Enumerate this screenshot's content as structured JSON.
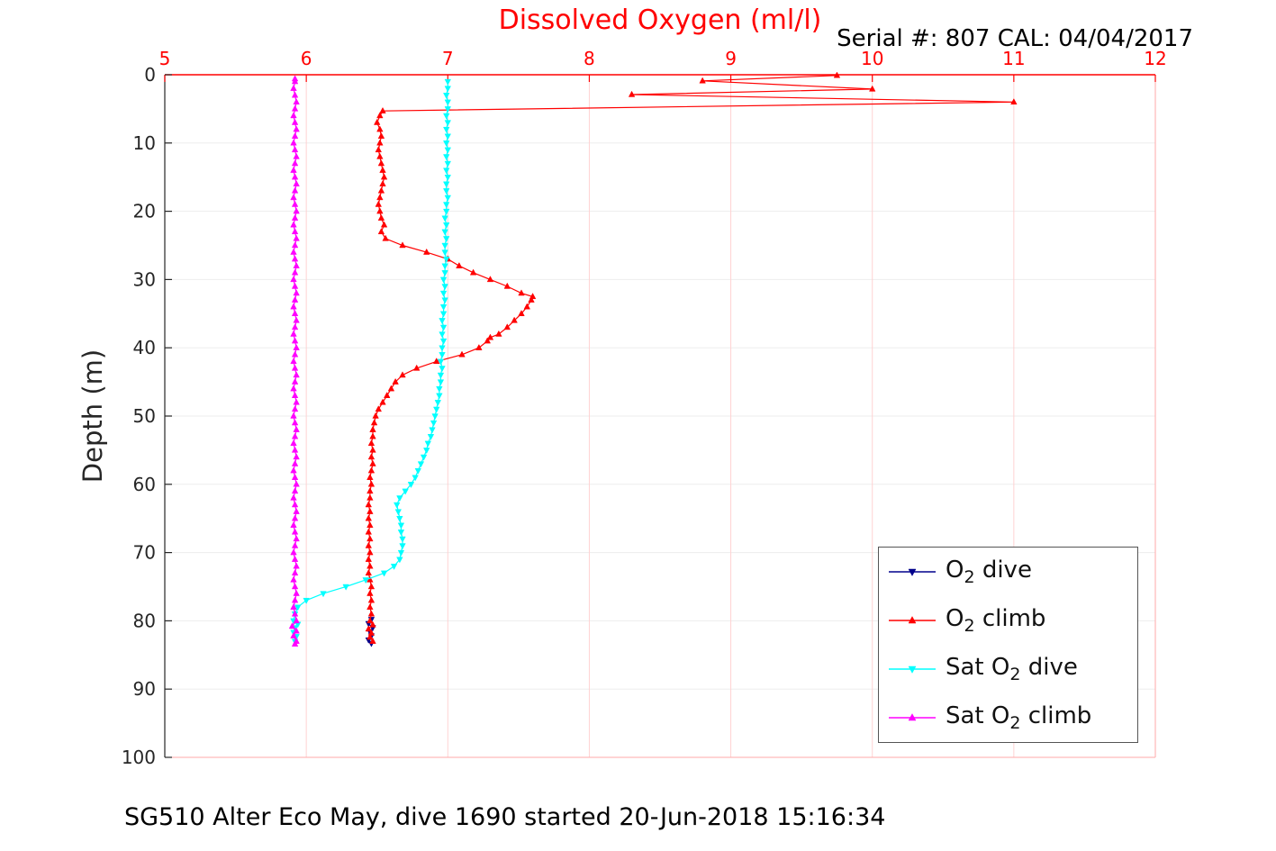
{
  "annotation": "Serial #: 807  CAL: 04/04/2017",
  "caption": "SG510 Alter Eco May, dive 1690 started 20-Jun-2018 15:16:34",
  "chart_data": {
    "type": "line",
    "title": "Dissolved Oxygen (ml/l)",
    "xlabel": "Dissolved Oxygen (ml/l)",
    "ylabel": "Depth (m)",
    "xlim": [
      5,
      12
    ],
    "ylim": [
      0,
      100
    ],
    "y_inverted": true,
    "x_axis_location": "top",
    "grid": true,
    "legend_position": "bottom-right",
    "xticks": [
      5,
      6,
      7,
      8,
      9,
      10,
      11,
      12
    ],
    "yticks": [
      0,
      10,
      20,
      30,
      40,
      50,
      60,
      70,
      80,
      90,
      100
    ],
    "style": {
      "x_axis_color": "#ff0000",
      "y_axis_color": "#262626",
      "x_grid_color": "#ffd2d2",
      "y_grid_color": "#ededed",
      "box_secondary_color": "#ffaaaa",
      "tick_label_size": 20
    },
    "series": [
      {
        "name": "O2 dive",
        "label_pre": "O",
        "label_sub": "2",
        "label_post": " dive",
        "color": "#00008b",
        "marker": "triangle-down",
        "points": [
          [
            6.46,
            79.8
          ],
          [
            6.44,
            80.4
          ],
          [
            6.47,
            81.0
          ],
          [
            6.45,
            81.6
          ],
          [
            6.46,
            82.2
          ],
          [
            6.44,
            82.8
          ],
          [
            6.46,
            83.3
          ]
        ]
      },
      {
        "name": "O2 climb",
        "label_pre": "O",
        "label_sub": "2",
        "label_post": " climb",
        "color": "#ff0000",
        "marker": "triangle-up",
        "points": [
          [
            9.75,
            0.1
          ],
          [
            8.8,
            0.9
          ],
          [
            10.0,
            2.1
          ],
          [
            8.3,
            2.9
          ],
          [
            11.0,
            4.0
          ],
          [
            6.54,
            5.3
          ],
          [
            6.52,
            6
          ],
          [
            6.5,
            7
          ],
          [
            6.52,
            8
          ],
          [
            6.53,
            9
          ],
          [
            6.52,
            10
          ],
          [
            6.51,
            11
          ],
          [
            6.52,
            12
          ],
          [
            6.53,
            13
          ],
          [
            6.54,
            14
          ],
          [
            6.55,
            15
          ],
          [
            6.54,
            16
          ],
          [
            6.53,
            17
          ],
          [
            6.52,
            18
          ],
          [
            6.51,
            19
          ],
          [
            6.52,
            20
          ],
          [
            6.53,
            21
          ],
          [
            6.55,
            22
          ],
          [
            6.53,
            23
          ],
          [
            6.56,
            24
          ],
          [
            6.68,
            25
          ],
          [
            6.85,
            26
          ],
          [
            7.0,
            27
          ],
          [
            7.08,
            28
          ],
          [
            7.18,
            29
          ],
          [
            7.3,
            30
          ],
          [
            7.42,
            31
          ],
          [
            7.52,
            32
          ],
          [
            7.6,
            32.5
          ],
          [
            7.59,
            33
          ],
          [
            7.56,
            34
          ],
          [
            7.52,
            35
          ],
          [
            7.47,
            36
          ],
          [
            7.42,
            37
          ],
          [
            7.36,
            38
          ],
          [
            7.3,
            38.5
          ],
          [
            7.28,
            39
          ],
          [
            7.22,
            40
          ],
          [
            7.1,
            41
          ],
          [
            6.92,
            42
          ],
          [
            6.78,
            43
          ],
          [
            6.68,
            44
          ],
          [
            6.63,
            45
          ],
          [
            6.6,
            46
          ],
          [
            6.57,
            47
          ],
          [
            6.54,
            48
          ],
          [
            6.51,
            49
          ],
          [
            6.49,
            50
          ],
          [
            6.48,
            51
          ],
          [
            6.47,
            52
          ],
          [
            6.47,
            53
          ],
          [
            6.46,
            54
          ],
          [
            6.47,
            55
          ],
          [
            6.46,
            56
          ],
          [
            6.47,
            57
          ],
          [
            6.46,
            58
          ],
          [
            6.45,
            59
          ],
          [
            6.46,
            60
          ],
          [
            6.45,
            61
          ],
          [
            6.45,
            62
          ],
          [
            6.44,
            63
          ],
          [
            6.45,
            64
          ],
          [
            6.44,
            65
          ],
          [
            6.45,
            66
          ],
          [
            6.44,
            67
          ],
          [
            6.45,
            68
          ],
          [
            6.44,
            69
          ],
          [
            6.45,
            70
          ],
          [
            6.44,
            71
          ],
          [
            6.45,
            72
          ],
          [
            6.44,
            73
          ],
          [
            6.45,
            74
          ],
          [
            6.46,
            75
          ],
          [
            6.45,
            76
          ],
          [
            6.46,
            77
          ],
          [
            6.45,
            78
          ],
          [
            6.46,
            79
          ],
          [
            6.45,
            80
          ],
          [
            6.47,
            80.6
          ],
          [
            6.44,
            81.2
          ],
          [
            6.46,
            81.8
          ],
          [
            6.45,
            82.4
          ],
          [
            6.47,
            83
          ]
        ]
      },
      {
        "name": "Sat O2 dive",
        "label_pre": "Sat O",
        "label_sub": "2",
        "label_post": " dive",
        "color": "#00ffff",
        "marker": "triangle-down",
        "points": [
          [
            7.0,
            1
          ],
          [
            7.0,
            2
          ],
          [
            6.99,
            3
          ],
          [
            7.0,
            4
          ],
          [
            7.0,
            5
          ],
          [
            6.99,
            6
          ],
          [
            7.0,
            7
          ],
          [
            6.99,
            8
          ],
          [
            7.0,
            9
          ],
          [
            6.99,
            10
          ],
          [
            7.0,
            11
          ],
          [
            6.99,
            12
          ],
          [
            7.0,
            13
          ],
          [
            6.99,
            14
          ],
          [
            7.0,
            15
          ],
          [
            6.99,
            16
          ],
          [
            6.99,
            17
          ],
          [
            7.0,
            18
          ],
          [
            6.99,
            19
          ],
          [
            6.99,
            20
          ],
          [
            6.98,
            21
          ],
          [
            6.99,
            22
          ],
          [
            6.98,
            23
          ],
          [
            6.99,
            24
          ],
          [
            6.98,
            25
          ],
          [
            6.98,
            26
          ],
          [
            6.99,
            27
          ],
          [
            6.98,
            28
          ],
          [
            6.98,
            29
          ],
          [
            6.97,
            30
          ],
          [
            6.98,
            31
          ],
          [
            6.97,
            32
          ],
          [
            6.98,
            33
          ],
          [
            6.97,
            34
          ],
          [
            6.97,
            35
          ],
          [
            6.96,
            36
          ],
          [
            6.97,
            37
          ],
          [
            6.96,
            38
          ],
          [
            6.97,
            39
          ],
          [
            6.96,
            40
          ],
          [
            6.96,
            41
          ],
          [
            6.95,
            42
          ],
          [
            6.96,
            43
          ],
          [
            6.95,
            44
          ],
          [
            6.95,
            45
          ],
          [
            6.94,
            46
          ],
          [
            6.94,
            47
          ],
          [
            6.93,
            48
          ],
          [
            6.92,
            49
          ],
          [
            6.91,
            50
          ],
          [
            6.9,
            51
          ],
          [
            6.89,
            52
          ],
          [
            6.88,
            53
          ],
          [
            6.86,
            54
          ],
          [
            6.85,
            55
          ],
          [
            6.83,
            56
          ],
          [
            6.81,
            57
          ],
          [
            6.79,
            58
          ],
          [
            6.77,
            59
          ],
          [
            6.74,
            60
          ],
          [
            6.7,
            61
          ],
          [
            6.66,
            62
          ],
          [
            6.64,
            63
          ],
          [
            6.65,
            64
          ],
          [
            6.66,
            65
          ],
          [
            6.67,
            66
          ],
          [
            6.67,
            67
          ],
          [
            6.68,
            68
          ],
          [
            6.68,
            69
          ],
          [
            6.67,
            70
          ],
          [
            6.66,
            71
          ],
          [
            6.62,
            72
          ],
          [
            6.55,
            73
          ],
          [
            6.42,
            74
          ],
          [
            6.28,
            75
          ],
          [
            6.12,
            76
          ],
          [
            6.0,
            77
          ],
          [
            5.94,
            78
          ],
          [
            5.92,
            79
          ],
          [
            5.91,
            80
          ],
          [
            5.94,
            80.5
          ],
          [
            5.92,
            81
          ],
          [
            5.91,
            81.7
          ],
          [
            5.93,
            82.3
          ],
          [
            5.92,
            83
          ]
        ]
      },
      {
        "name": "Sat O2 climb",
        "label_pre": "Sat O",
        "label_sub": "2",
        "label_post": " climb",
        "color": "#ff00ff",
        "marker": "triangle-up",
        "points": [
          [
            5.92,
            0.6
          ],
          [
            5.92,
            1
          ],
          [
            5.91,
            2
          ],
          [
            5.92,
            3
          ],
          [
            5.93,
            4
          ],
          [
            5.92,
            5
          ],
          [
            5.91,
            6
          ],
          [
            5.92,
            7
          ],
          [
            5.93,
            8
          ],
          [
            5.92,
            9
          ],
          [
            5.91,
            10
          ],
          [
            5.92,
            11
          ],
          [
            5.93,
            12
          ],
          [
            5.92,
            13
          ],
          [
            5.91,
            14
          ],
          [
            5.92,
            15
          ],
          [
            5.93,
            16
          ],
          [
            5.92,
            17
          ],
          [
            5.91,
            18
          ],
          [
            5.92,
            19
          ],
          [
            5.93,
            20
          ],
          [
            5.92,
            21
          ],
          [
            5.91,
            22
          ],
          [
            5.92,
            23
          ],
          [
            5.93,
            24
          ],
          [
            5.92,
            25
          ],
          [
            5.91,
            26
          ],
          [
            5.92,
            27
          ],
          [
            5.93,
            28
          ],
          [
            5.92,
            29
          ],
          [
            5.91,
            30
          ],
          [
            5.92,
            31
          ],
          [
            5.93,
            32
          ],
          [
            5.92,
            33
          ],
          [
            5.91,
            34
          ],
          [
            5.92,
            35
          ],
          [
            5.93,
            36
          ],
          [
            5.92,
            37
          ],
          [
            5.91,
            38
          ],
          [
            5.92,
            39
          ],
          [
            5.93,
            40
          ],
          [
            5.92,
            41
          ],
          [
            5.91,
            42
          ],
          [
            5.92,
            43
          ],
          [
            5.93,
            44
          ],
          [
            5.92,
            45
          ],
          [
            5.91,
            46
          ],
          [
            5.92,
            47
          ],
          [
            5.93,
            48
          ],
          [
            5.92,
            49
          ],
          [
            5.91,
            50
          ],
          [
            5.92,
            51
          ],
          [
            5.93,
            52
          ],
          [
            5.92,
            53
          ],
          [
            5.91,
            54
          ],
          [
            5.92,
            55
          ],
          [
            5.93,
            56
          ],
          [
            5.92,
            57
          ],
          [
            5.91,
            58
          ],
          [
            5.92,
            59
          ],
          [
            5.93,
            60
          ],
          [
            5.92,
            61
          ],
          [
            5.91,
            62
          ],
          [
            5.92,
            63
          ],
          [
            5.93,
            64
          ],
          [
            5.92,
            65
          ],
          [
            5.91,
            66
          ],
          [
            5.92,
            67
          ],
          [
            5.93,
            68
          ],
          [
            5.92,
            69
          ],
          [
            5.91,
            70
          ],
          [
            5.92,
            71
          ],
          [
            5.93,
            72
          ],
          [
            5.92,
            73
          ],
          [
            5.91,
            74
          ],
          [
            5.92,
            75
          ],
          [
            5.93,
            76
          ],
          [
            5.92,
            77
          ],
          [
            5.91,
            78
          ],
          [
            5.92,
            79
          ],
          [
            5.93,
            80
          ],
          [
            5.9,
            80.8
          ],
          [
            5.93,
            81.5
          ],
          [
            5.91,
            82.2
          ],
          [
            5.93,
            83
          ],
          [
            5.92,
            83.4
          ]
        ]
      }
    ]
  }
}
